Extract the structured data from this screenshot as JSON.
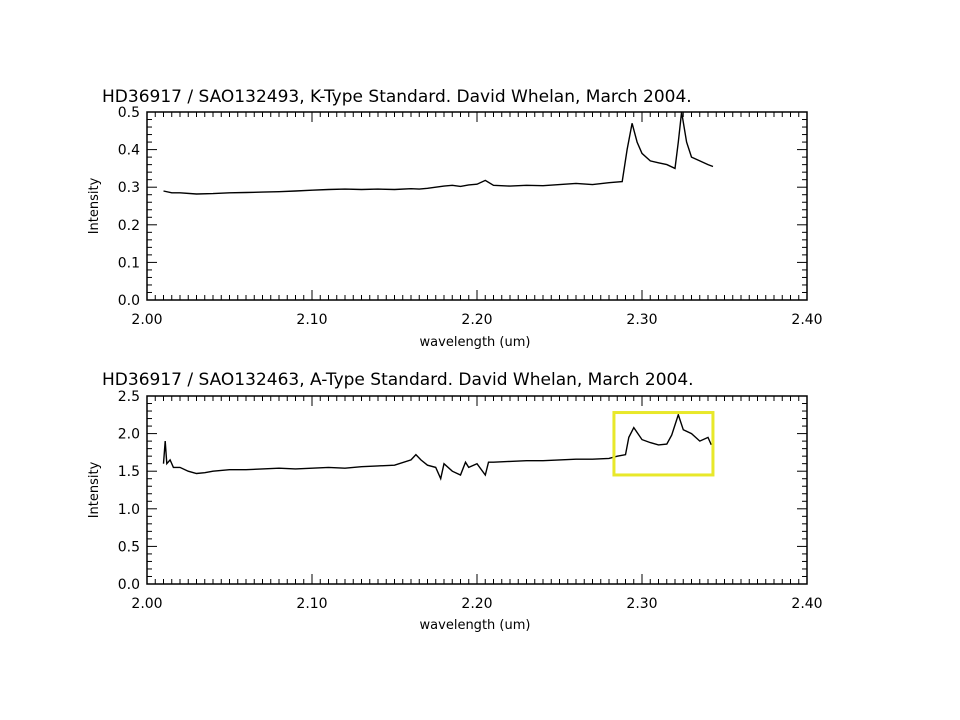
{
  "chart_data": [
    {
      "type": "line",
      "title": "HD36917 / SAO132493, K-Type Standard.  David Whelan, March 2004.",
      "xlabel": "wavelength (um)",
      "ylabel": "Intensity",
      "xlim": [
        2.0,
        2.4
      ],
      "ylim": [
        0.0,
        0.5
      ],
      "x_ticks": [
        "2.00",
        "2.10",
        "2.20",
        "2.30",
        "2.40"
      ],
      "y_ticks": [
        "0.0",
        "0.1",
        "0.2",
        "0.3",
        "0.4",
        "0.5"
      ],
      "grid": false,
      "series": [
        {
          "x": [
            2.01,
            2.015,
            2.02,
            2.03,
            2.04,
            2.05,
            2.06,
            2.07,
            2.08,
            2.09,
            2.1,
            2.11,
            2.12,
            2.13,
            2.14,
            2.15,
            2.16,
            2.165,
            2.17,
            2.175,
            2.18,
            2.185,
            2.19,
            2.195,
            2.2,
            2.205,
            2.21,
            2.22,
            2.23,
            2.24,
            2.25,
            2.26,
            2.27,
            2.28,
            2.288,
            2.291,
            2.294,
            2.297,
            2.3,
            2.305,
            2.31,
            2.315,
            2.32,
            2.322,
            2.324,
            2.327,
            2.33,
            2.335,
            2.34,
            2.343
          ],
          "y": [
            0.29,
            0.285,
            0.285,
            0.282,
            0.283,
            0.285,
            0.286,
            0.287,
            0.288,
            0.29,
            0.292,
            0.294,
            0.295,
            0.294,
            0.295,
            0.294,
            0.296,
            0.295,
            0.297,
            0.3,
            0.303,
            0.305,
            0.302,
            0.306,
            0.308,
            0.318,
            0.305,
            0.303,
            0.305,
            0.304,
            0.307,
            0.31,
            0.307,
            0.312,
            0.315,
            0.4,
            0.47,
            0.42,
            0.39,
            0.37,
            0.365,
            0.36,
            0.35,
            0.42,
            0.5,
            0.42,
            0.38,
            0.37,
            0.36,
            0.355
          ]
        }
      ]
    },
    {
      "type": "line",
      "title": "HD36917 / SAO132463, A-Type Standard.  David Whelan, March 2004.",
      "xlabel": "wavelength (um)",
      "ylabel": "Intensity",
      "xlim": [
        2.0,
        2.4
      ],
      "ylim": [
        0.0,
        2.5
      ],
      "x_ticks": [
        "2.00",
        "2.10",
        "2.20",
        "2.30",
        "2.40"
      ],
      "y_ticks": [
        "0.0",
        "0.5",
        "1.0",
        "1.5",
        "2.0",
        "2.5"
      ],
      "grid": false,
      "highlight_box": {
        "x_range": [
          2.283,
          2.343
        ],
        "y_range": [
          1.45,
          2.28
        ],
        "color": "#e8e82a"
      },
      "series": [
        {
          "x": [
            2.01,
            2.011,
            2.012,
            2.014,
            2.016,
            2.02,
            2.025,
            2.03,
            2.035,
            2.04,
            2.05,
            2.06,
            2.07,
            2.08,
            2.09,
            2.1,
            2.11,
            2.12,
            2.13,
            2.14,
            2.15,
            2.16,
            2.163,
            2.166,
            2.17,
            2.175,
            2.178,
            2.18,
            2.185,
            2.19,
            2.193,
            2.195,
            2.2,
            2.205,
            2.207,
            2.21,
            2.22,
            2.23,
            2.24,
            2.25,
            2.26,
            2.27,
            2.28,
            2.285,
            2.29,
            2.292,
            2.295,
            2.3,
            2.305,
            2.31,
            2.315,
            2.318,
            2.322,
            2.325,
            2.33,
            2.335,
            2.34,
            2.342
          ],
          "y": [
            1.6,
            1.9,
            1.6,
            1.65,
            1.55,
            1.55,
            1.5,
            1.47,
            1.48,
            1.5,
            1.52,
            1.52,
            1.53,
            1.54,
            1.53,
            1.54,
            1.55,
            1.54,
            1.56,
            1.57,
            1.58,
            1.65,
            1.72,
            1.65,
            1.58,
            1.55,
            1.4,
            1.6,
            1.5,
            1.45,
            1.62,
            1.55,
            1.6,
            1.45,
            1.62,
            1.62,
            1.63,
            1.64,
            1.64,
            1.65,
            1.66,
            1.66,
            1.67,
            1.7,
            1.72,
            1.95,
            2.08,
            1.92,
            1.88,
            1.85,
            1.86,
            1.98,
            2.25,
            2.05,
            2.0,
            1.9,
            1.95,
            1.85
          ]
        }
      ]
    }
  ]
}
